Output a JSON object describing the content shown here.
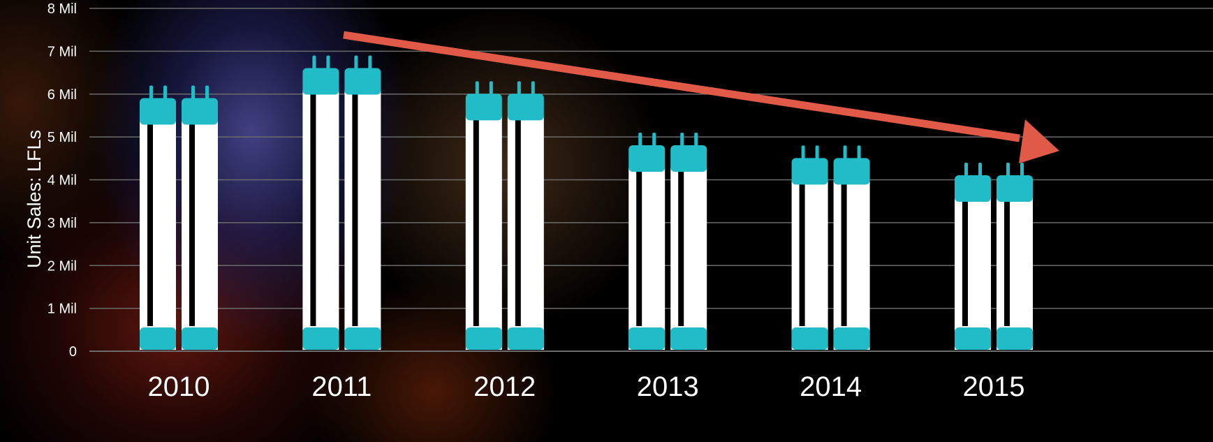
{
  "chart_data": {
    "type": "bar",
    "title": "",
    "xlabel": "",
    "ylabel": "Unit Sales: LFLs",
    "categories": [
      "2010",
      "2011",
      "2012",
      "2013",
      "2014",
      "2015"
    ],
    "values": [
      6.2,
      6.9,
      6.3,
      5.1,
      4.8,
      4.4
    ],
    "ylim": [
      0,
      8
    ],
    "yticks": [
      {
        "value": 0,
        "label": "0"
      },
      {
        "value": 1,
        "label": "1 Mil"
      },
      {
        "value": 2,
        "label": "2 Mil"
      },
      {
        "value": 3,
        "label": "3 Mil"
      },
      {
        "value": 4,
        "label": "4 Mil"
      },
      {
        "value": 5,
        "label": "5 Mil"
      },
      {
        "value": 6,
        "label": "6 Mil"
      },
      {
        "value": 7,
        "label": "7 Mil"
      },
      {
        "value": 8,
        "label": "8 Mil"
      }
    ],
    "grid": true,
    "marker": "fluorescent-tube-pair-icon",
    "annotation": {
      "type": "trend-arrow",
      "direction": "down"
    },
    "colors": {
      "tube_body": "#ffffff",
      "tube_cap": "#22bcc8",
      "grid": "#6b6b6b",
      "arrow": "#e05a47",
      "text": "#ffffff"
    }
  }
}
